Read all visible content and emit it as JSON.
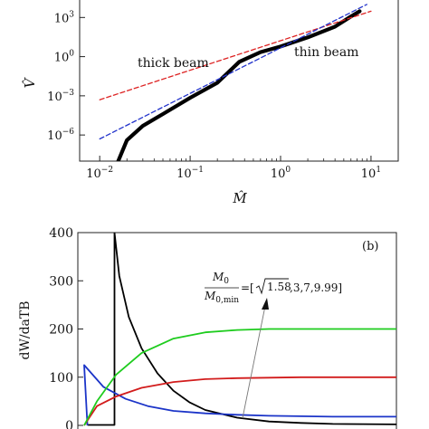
{
  "chart_data": [
    {
      "type": "line",
      "panel": "top",
      "xscale": "log",
      "yscale": "log",
      "xlim": [
        0.006,
        20
      ],
      "ylim": [
        1e-08,
        30000
      ],
      "x_ticks": [
        0.01,
        0.1,
        1,
        10
      ],
      "x_tick_labels": [
        {
          "base": "10",
          "exp": "−2"
        },
        {
          "base": "10",
          "exp": "−1"
        },
        {
          "base": "10",
          "exp": "0"
        },
        {
          "base": "10",
          "exp": "1"
        }
      ],
      "y_ticks": [
        1e-06,
        0.001,
        1,
        1000
      ],
      "y_tick_labels": [
        {
          "base": "10",
          "exp": "−6"
        },
        {
          "base": "10",
          "exp": "−3"
        },
        {
          "base": "10",
          "exp": "0"
        },
        {
          "base": "10",
          "exp": "3"
        }
      ],
      "xlabel": "M̂",
      "ylabel": "V̂",
      "annotations": [
        {
          "text": "thick beam",
          "x": 0.11,
          "y": 0.6
        },
        {
          "text": "thin beam",
          "x": 2.4,
          "y": 3.5
        }
      ],
      "series": [
        {
          "color": "#000000",
          "style": "solid",
          "x": [
            0.016,
            0.02,
            0.03,
            0.05,
            0.1,
            0.2,
            0.35,
            0.6,
            1,
            2,
            4,
            6,
            7.5
          ],
          "y": [
            1e-08,
            4e-07,
            5e-06,
            4e-05,
            0.0007,
            0.01,
            0.4,
            2.2,
            6,
            30,
            200,
            1200,
            3000
          ]
        },
        {
          "color": "#dd2222",
          "style": "dashed",
          "x": [
            0.01,
            10
          ],
          "y": [
            0.0005,
            3000
          ]
        },
        {
          "color": "#2233cc",
          "style": "dashed",
          "x": [
            0.01,
            9
          ],
          "y": [
            5e-07,
            10000
          ]
        }
      ]
    },
    {
      "type": "line",
      "panel": "bottom",
      "panel_label": "(b)",
      "ylabel": "dW/daTB",
      "ylim": [
        0,
        400
      ],
      "y_ticks": [
        0,
        100,
        200,
        300,
        400
      ],
      "y_tick_labels": [
        "0",
        "100",
        "200",
        "300",
        "400"
      ],
      "xlim": [
        0,
        10
      ],
      "annotation": {
        "numerator": "M",
        "numerator_sub": "0",
        "denominator": "M",
        "denominator_sub": "0,min",
        "equals": "=[",
        "sqrt_arg": "1.58",
        "rest": ",3,7,9.99]"
      },
      "series": [
        {
          "color": "#000000",
          "x": [
            0.3,
            0.3,
            1.15,
            1.15,
            1.3,
            1.6,
            2,
            2.5,
            3,
            3.5,
            4,
            5,
            6,
            7,
            8,
            10
          ],
          "y": [
            0,
            1,
            1,
            400,
            310,
            225,
            160,
            108,
            72,
            48,
            32,
            16,
            8,
            5,
            3,
            2
          ]
        },
        {
          "color": "#1b34c8",
          "x": [
            0.3,
            0.2,
            0.8,
            1.5,
            2.2,
            3.0,
            4.0,
            5.0,
            6.0,
            7.0,
            8.0,
            10.0
          ],
          "y": [
            0,
            125,
            80,
            55,
            40,
            30,
            25,
            22,
            20,
            19,
            18,
            18
          ]
        },
        {
          "color": "#d21c1c",
          "x": [
            0.2,
            0.6,
            1.2,
            2,
            3,
            4,
            5,
            6,
            7,
            8,
            10
          ],
          "y": [
            0,
            40,
            60,
            78,
            90,
            96,
            98,
            99,
            100,
            100,
            100
          ]
        },
        {
          "color": "#1ecc1e",
          "x": [
            0.2,
            0.6,
            1.2,
            2,
            3,
            4,
            5,
            6,
            7,
            8,
            10
          ],
          "y": [
            0,
            50,
            105,
            150,
            180,
            193,
            198,
            200,
            200,
            200,
            200
          ]
        }
      ]
    }
  ]
}
